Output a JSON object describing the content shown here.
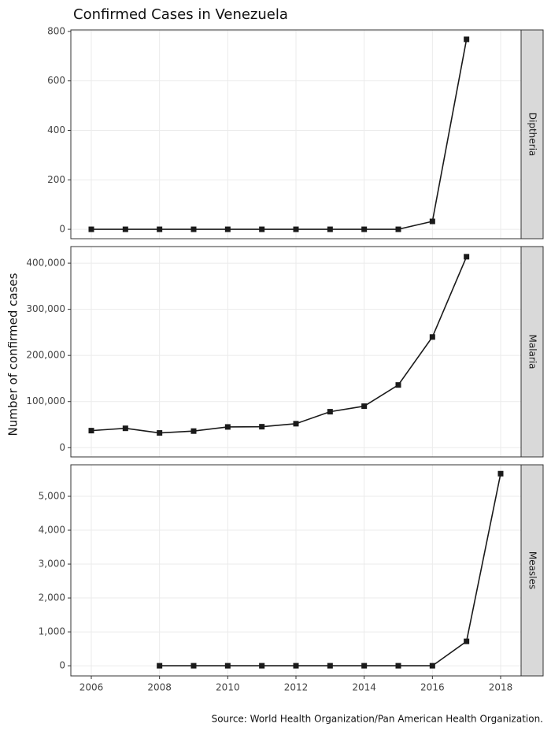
{
  "title": "Confirmed Cases in Venezuela",
  "y_label": "Number of confirmed cases",
  "source": "Source: World Health Organization/Pan American Health Organization.",
  "chart_data": [
    {
      "type": "line",
      "facet_label": "Diptheria",
      "color": "#1a1a1a",
      "grid": true,
      "x": [
        2006,
        2007,
        2008,
        2009,
        2010,
        2011,
        2012,
        2013,
        2014,
        2015,
        2016,
        2017
      ],
      "values": [
        0,
        0,
        0,
        0,
        0,
        0,
        0,
        0,
        0,
        0,
        32,
        768
      ],
      "xlim": [
        2005.4,
        2018.6
      ],
      "xticks": [
        2006,
        2008,
        2010,
        2012,
        2014,
        2016,
        2018
      ],
      "ylim": [
        -38,
        806
      ],
      "yticks": [
        0,
        200,
        400,
        600,
        800
      ]
    },
    {
      "type": "line",
      "facet_label": "Malaria",
      "color": "#1a1a1a",
      "grid": true,
      "x": [
        2006,
        2007,
        2008,
        2009,
        2010,
        2011,
        2012,
        2013,
        2014,
        2015,
        2016,
        2017
      ],
      "values": [
        37000,
        42000,
        32000,
        36000,
        45000,
        45500,
        52000,
        78000,
        90000,
        136000,
        240000,
        414000
      ],
      "xlim": [
        2005.4,
        2018.6
      ],
      "xticks": [
        2006,
        2008,
        2010,
        2012,
        2014,
        2016,
        2018
      ],
      "ylim": [
        -20000,
        436000
      ],
      "yticks": [
        0,
        {
          "value": 100000,
          "label": "100,000"
        },
        {
          "value": 200000,
          "label": "200,000"
        },
        {
          "value": 300000,
          "label": "300,000"
        },
        {
          "value": 400000,
          "label": "400,000"
        }
      ]
    },
    {
      "type": "line",
      "facet_label": "Measles",
      "color": "#1a1a1a",
      "grid": true,
      "x": [
        2008,
        2009,
        2010,
        2011,
        2012,
        2013,
        2014,
        2015,
        2016,
        2017,
        2018
      ],
      "values": [
        0,
        0,
        0,
        0,
        0,
        0,
        0,
        0,
        0,
        720,
        5668
      ],
      "xlim": [
        2005.4,
        2018.6
      ],
      "xticks": [
        2006,
        2008,
        2010,
        2012,
        2014,
        2016,
        2018
      ],
      "ylim": [
        -300,
        5930
      ],
      "yticks": [
        0,
        {
          "value": 1000,
          "label": "1,000"
        },
        {
          "value": 2000,
          "label": "2,000"
        },
        {
          "value": 3000,
          "label": "3,000"
        },
        {
          "value": 4000,
          "label": "4,000"
        },
        {
          "value": 5000,
          "label": "5,000"
        }
      ]
    }
  ]
}
